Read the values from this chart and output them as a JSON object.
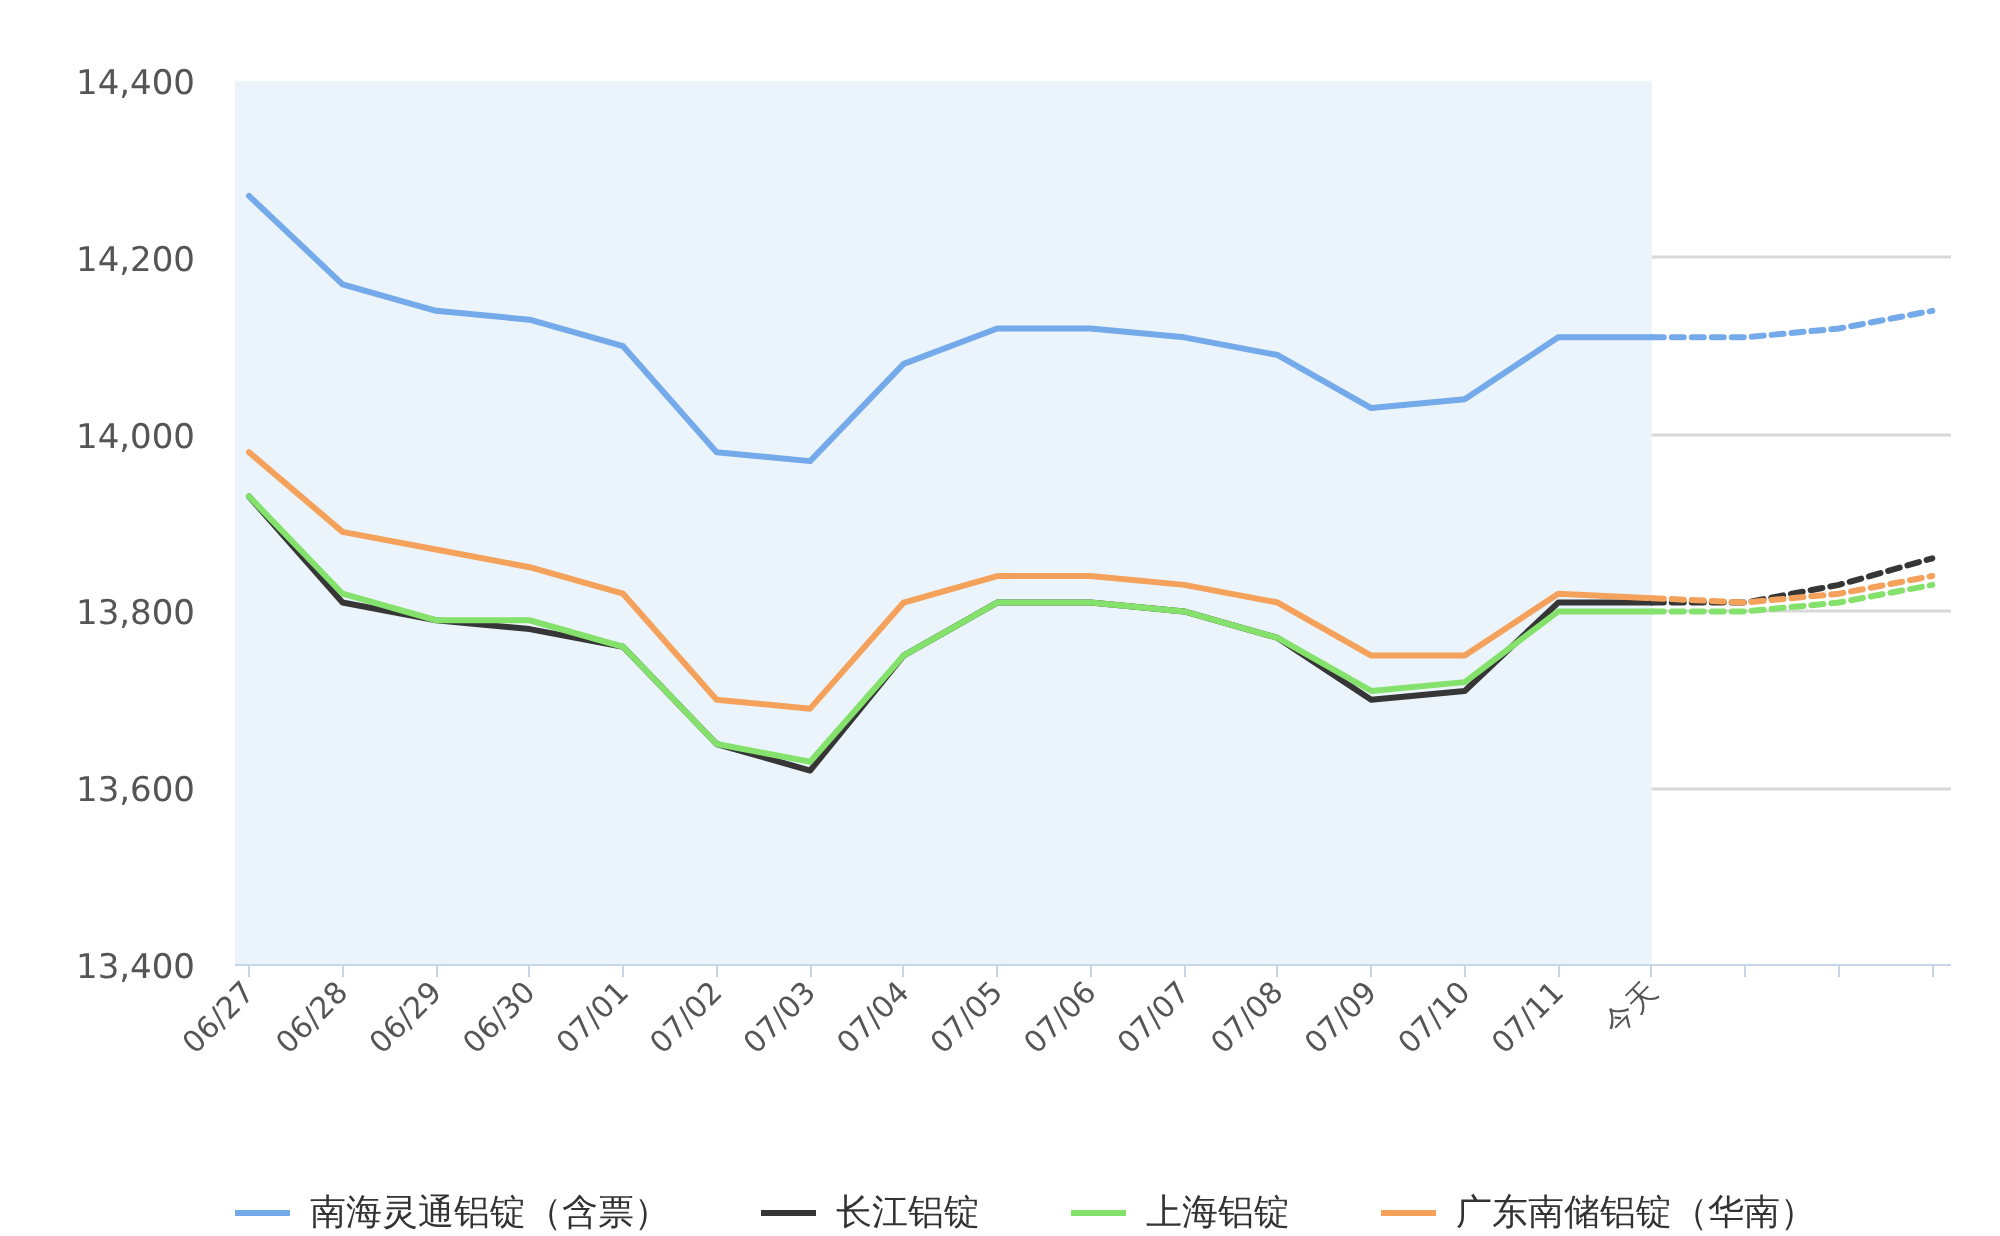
{
  "chart_data": {
    "type": "line",
    "categories": [
      "06/27",
      "06/28",
      "06/29",
      "06/30",
      "07/01",
      "07/02",
      "07/03",
      "07/04",
      "07/05",
      "07/06",
      "07/07",
      "07/08",
      "07/09",
      "07/10",
      "07/11",
      "今天",
      null,
      null,
      null
    ],
    "ylim": [
      13400,
      14400
    ],
    "yticks": [
      {
        "value": 13400,
        "label": "13,400"
      },
      {
        "value": 13600,
        "label": "13,600"
      },
      {
        "value": 13800,
        "label": "13,800"
      },
      {
        "value": 14000,
        "label": "14,000"
      },
      {
        "value": 14200,
        "label": "14,200"
      },
      {
        "value": 14400,
        "label": "14,400"
      }
    ],
    "grid": "y",
    "legend": "bottom",
    "bands": [
      {
        "axis": "x",
        "from": "06/27",
        "to": "今天",
        "color": "#ebf4fb"
      }
    ],
    "series": [
      {
        "name": "南海灵通铝锭（含票）",
        "color": "#74aaea",
        "values": [
          14270,
          14170,
          14140,
          14130,
          14100,
          13980,
          13970,
          14080,
          14120,
          14120,
          14110,
          14090,
          14030,
          14040,
          14110,
          14110,
          null,
          null,
          null
        ]
      },
      {
        "name": "长江铝锭",
        "color": "#363636",
        "values": [
          13930,
          13810,
          13790,
          13780,
          13760,
          13650,
          13620,
          13750,
          13810,
          13810,
          13800,
          13770,
          13700,
          13710,
          13810,
          13810,
          null,
          null,
          null
        ]
      },
      {
        "name": "上海铝锭",
        "color": "#84e26c",
        "values": [
          13930,
          13820,
          13790,
          13790,
          13760,
          13650,
          13630,
          13750,
          13810,
          13810,
          13800,
          13770,
          13710,
          13720,
          13800,
          13800,
          null,
          null,
          null
        ]
      },
      {
        "name": "广东南储铝锭（华南）",
        "color": "#f4a15b",
        "values": [
          13980,
          13890,
          13870,
          13850,
          13820,
          13700,
          13690,
          13810,
          13840,
          13840,
          13830,
          13810,
          13750,
          13750,
          13820,
          13815,
          null,
          null,
          null
        ]
      },
      {
        "color": "#74aaea",
        "line_style": "dashed",
        "values": [
          null,
          null,
          null,
          null,
          null,
          null,
          null,
          null,
          null,
          null,
          null,
          null,
          null,
          null,
          null,
          14110,
          14110,
          14120,
          14140
        ]
      },
      {
        "color": "#363636",
        "line_style": "dashed",
        "values": [
          null,
          null,
          null,
          null,
          null,
          null,
          null,
          null,
          null,
          null,
          null,
          null,
          null,
          null,
          null,
          13810,
          13810,
          13830,
          13860
        ]
      },
      {
        "color": "#84e26c",
        "line_style": "dashed",
        "values": [
          null,
          null,
          null,
          null,
          null,
          null,
          null,
          null,
          null,
          null,
          null,
          null,
          null,
          null,
          null,
          13800,
          13800,
          13810,
          13830
        ]
      },
      {
        "color": "#f4a15b",
        "line_style": "dashed",
        "values": [
          null,
          null,
          null,
          null,
          null,
          null,
          null,
          null,
          null,
          null,
          null,
          null,
          null,
          null,
          null,
          13815,
          13810,
          13820,
          13840
        ]
      }
    ]
  }
}
